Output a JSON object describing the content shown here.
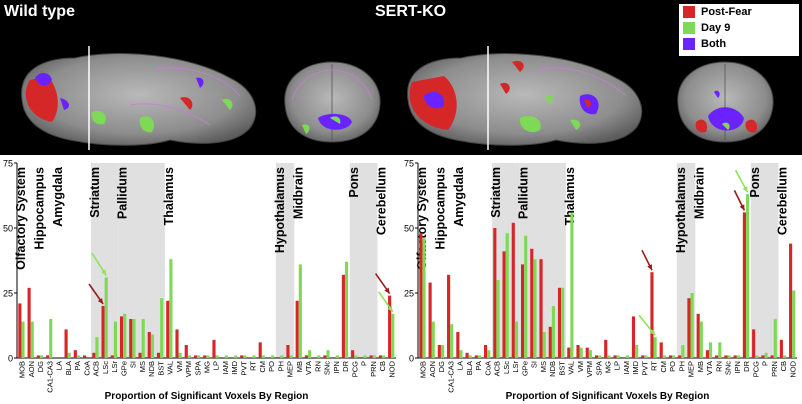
{
  "header": {
    "left_title": "Wild type",
    "right_title": "SERT-KO"
  },
  "legend": [
    {
      "label": "Post-Fear",
      "color": "#d62728"
    },
    {
      "label": "Day 9",
      "color": "#7ed957"
    },
    {
      "label": "Both",
      "color": "#6a23ff"
    }
  ],
  "chart_data": [
    {
      "type": "bar",
      "xlabel": "Proportion of Significant Voxels By Region",
      "ylim": [
        0,
        75
      ],
      "yticks": [
        0,
        25,
        50,
        75
      ],
      "categories": [
        "MOB",
        "AON",
        "DG",
        "CA1-CA3",
        "LA",
        "BLA",
        "PA",
        "CoA",
        "ACB",
        "LSc",
        "LSr",
        "GPe",
        "SI",
        "MS",
        "NDB",
        "BST",
        "VAL",
        "VM",
        "VPM",
        "SPA",
        "MG",
        "LP",
        "IAM",
        "IMD",
        "PVT",
        "RT",
        "CM",
        "PO",
        "PH",
        "MEP",
        "MB",
        "VTA",
        "RN",
        "SNc",
        "IPN",
        "DR",
        "PCG",
        "P",
        "PRN",
        "CB",
        "NOD"
      ],
      "series": [
        {
          "name": "Post-Fear",
          "values": [
            21,
            27,
            1,
            1,
            0,
            11,
            3,
            1,
            2,
            20,
            1,
            16,
            15,
            2,
            10,
            2,
            22,
            11,
            5,
            1,
            1,
            7,
            0,
            0,
            1,
            0,
            6,
            0,
            0,
            5,
            22,
            1,
            0,
            1,
            0,
            32,
            3,
            0,
            1,
            1,
            24
          ]
        },
        {
          "name": "Day 9",
          "values": [
            14,
            14,
            1,
            15,
            0,
            2,
            1,
            0,
            8,
            31,
            14,
            17,
            15,
            15,
            9,
            23,
            38,
            2,
            1,
            1,
            1,
            1,
            1,
            1,
            1,
            1,
            1,
            1,
            1,
            1,
            36,
            3,
            1,
            3,
            1,
            37,
            1,
            1,
            1,
            1,
            17
          ]
        }
      ],
      "regions": [
        {
          "label": "Olfactory System",
          "from": 0,
          "to": 1,
          "shaded": false
        },
        {
          "label": "Hippocampus",
          "from": 2,
          "to": 3,
          "shaded": false
        },
        {
          "label": "Amygdala",
          "from": 4,
          "to": 7,
          "shaded": false
        },
        {
          "label": "Striatum",
          "from": 8,
          "to": 10,
          "shaded": true
        },
        {
          "label": "Pallidum",
          "from": 11,
          "to": 15,
          "shaded": true
        },
        {
          "label": "Thalamus",
          "from": 16,
          "to": 27,
          "shaded": false
        },
        {
          "label": "Hypothalamus",
          "from": 28,
          "to": 29,
          "shaded": true
        },
        {
          "label": "Midbrain",
          "from": 30,
          "to": 35,
          "shaded": false
        },
        {
          "label": "Pons",
          "from": 36,
          "to": 38,
          "shaded": true
        },
        {
          "label": "Cerebellum",
          "from": 39,
          "to": 40,
          "shaded": false
        }
      ]
    },
    {
      "type": "bar",
      "xlabel": "Proportion of Significant Voxels By Region",
      "ylim": [
        0,
        75
      ],
      "yticks": [
        0,
        25,
        50,
        75
      ],
      "categories": [
        "MOB",
        "AON",
        "DG",
        "CA1-CA3",
        "LA",
        "BLA",
        "PA",
        "CoA",
        "ACB",
        "LSc",
        "LSr",
        "GPe",
        "SI",
        "MS",
        "NDB",
        "BST",
        "VAL",
        "VM",
        "VPM",
        "SPA",
        "MG",
        "LP",
        "IAM",
        "IMD",
        "PVT",
        "RT",
        "CM",
        "PO",
        "PH",
        "MEP",
        "MB",
        "VTA",
        "RN",
        "SNc",
        "IPN",
        "DR",
        "PCG",
        "P",
        "PRN",
        "CB",
        "NOD"
      ],
      "series": [
        {
          "name": "Post-Fear",
          "values": [
            48,
            29,
            5,
            32,
            10,
            2,
            1,
            5,
            50,
            41,
            52,
            36,
            42,
            38,
            12,
            27,
            4,
            5,
            4,
            1,
            7,
            1,
            0,
            16,
            1,
            33,
            6,
            1,
            1,
            23,
            17,
            3,
            1,
            1,
            1,
            56,
            11,
            1,
            1,
            7,
            44
          ]
        },
        {
          "name": "Day 9",
          "values": [
            46,
            14,
            5,
            13,
            3,
            1,
            1,
            3,
            30,
            48,
            14,
            47,
            38,
            10,
            20,
            27,
            56,
            4,
            3,
            1,
            1,
            1,
            1,
            5,
            1,
            8,
            1,
            1,
            5,
            25,
            14,
            6,
            6,
            1,
            1,
            63,
            1,
            2,
            15,
            1,
            26
          ]
        }
      ],
      "regions": [
        {
          "label": "Olfactory System",
          "from": 0,
          "to": 1,
          "shaded": false
        },
        {
          "label": "Hippocampus",
          "from": 2,
          "to": 3,
          "shaded": false
        },
        {
          "label": "Amygdala",
          "from": 4,
          "to": 7,
          "shaded": false
        },
        {
          "label": "Striatum",
          "from": 8,
          "to": 10,
          "shaded": true
        },
        {
          "label": "Pallidum",
          "from": 11,
          "to": 15,
          "shaded": true
        },
        {
          "label": "Thalamus",
          "from": 16,
          "to": 27,
          "shaded": false
        },
        {
          "label": "Hypothalamus",
          "from": 28,
          "to": 29,
          "shaded": true
        },
        {
          "label": "Midbrain",
          "from": 30,
          "to": 35,
          "shaded": false
        },
        {
          "label": "Pons",
          "from": 36,
          "to": 38,
          "shaded": true
        },
        {
          "label": "Cerebellum",
          "from": 39,
          "to": 40,
          "shaded": false
        }
      ]
    }
  ]
}
